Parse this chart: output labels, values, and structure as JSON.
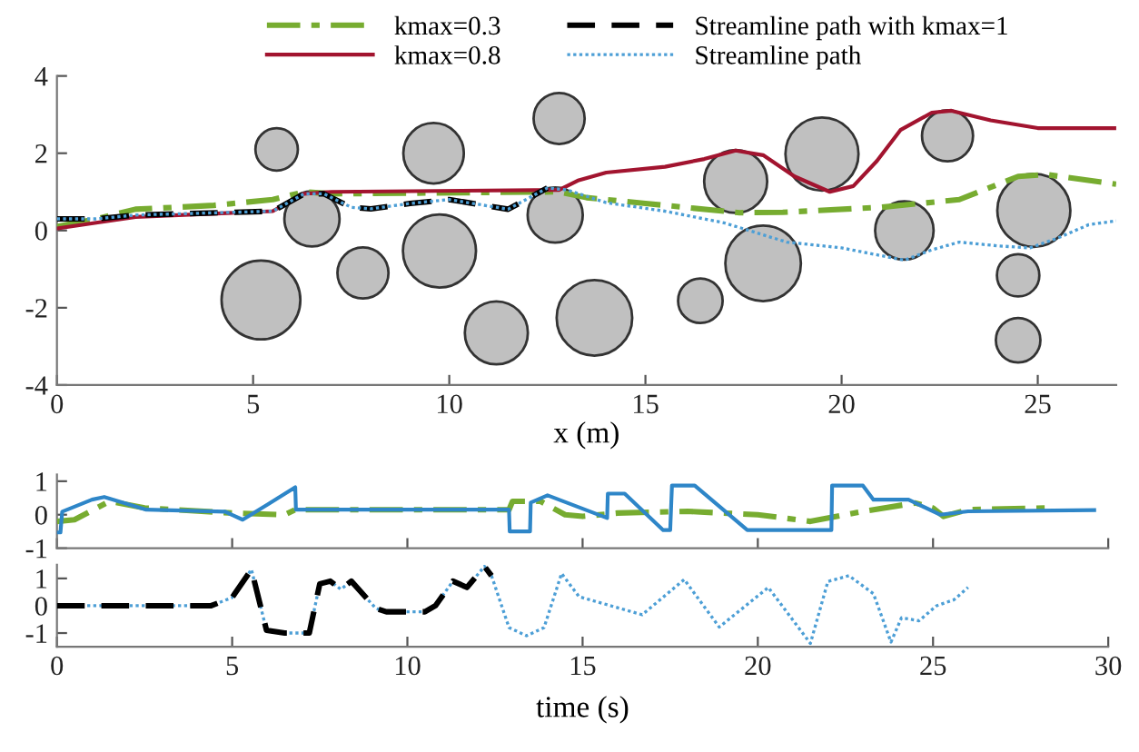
{
  "chart_data": [
    {
      "type": "line",
      "xlabel": "x (m)",
      "xlim": [
        0,
        27
      ],
      "ylim": [
        -4,
        4
      ],
      "xticks": [
        0,
        5,
        10,
        15,
        20,
        25
      ],
      "yticks": [
        4,
        2,
        0,
        -2,
        -4
      ],
      "legend": "top",
      "series": [
        {
          "type": "bubble",
          "color": "#c0c0c0",
          "x": [
            5.6,
            6.5,
            5.2,
            7.8,
            9.6,
            9.75,
            11.2,
            12.8,
            12.7,
            13.7,
            17.3,
            19.5,
            18.0,
            16.4,
            22.7,
            21.6,
            24.9,
            24.5,
            24.5
          ],
          "values": [
            2.1,
            0.3,
            -1.8,
            -1.1,
            2.0,
            -0.53,
            -2.65,
            2.9,
            0.4,
            -2.26,
            1.27,
            1.98,
            -0.85,
            -1.82,
            2.45,
            0.0,
            0.52,
            -1.16,
            -2.84
          ],
          "sizes": [
            0.29,
            0.49,
            1,
            0.42,
            0.59,
            0.86,
            0.64,
            0.42,
            0.49,
            0.92,
            0.64,
            0.86,
            0.92,
            0.32,
            0.42,
            0.55,
            0.86,
            0.29,
            0.32
          ]
        },
        {
          "type": "line",
          "name": "kmax=0.3",
          "color": "#77ac30",
          "line_style": "dashdot",
          "x": [
            0,
            1,
            2,
            4,
            5.5,
            6.3,
            7,
            12.8,
            13.5,
            15,
            17.4,
            18.5,
            21,
            23,
            24.5,
            25.2,
            27
          ],
          "values": [
            0.1,
            0.3,
            0.55,
            0.65,
            0.8,
            1.0,
            0.95,
            1.0,
            0.85,
            0.7,
            0.46,
            0.47,
            0.6,
            0.8,
            1.4,
            1.45,
            1.2
          ]
        },
        {
          "type": "line",
          "name": "kmax=0.8",
          "color": "#a2142f",
          "line_style": "solid",
          "x": [
            0,
            1,
            2,
            5.5,
            6.3,
            7,
            12.8,
            13.3,
            14,
            15.5,
            16.5,
            17.3,
            18,
            18.8,
            19.7,
            20.3,
            20.9,
            21.5,
            22.3,
            22.8,
            23.8,
            25,
            27
          ],
          "values": [
            0.05,
            0.2,
            0.35,
            0.5,
            0.95,
            1.0,
            1.05,
            1.3,
            1.5,
            1.65,
            1.85,
            2.07,
            1.95,
            1.4,
            1.0,
            1.15,
            1.8,
            2.6,
            3.05,
            3.1,
            2.85,
            2.65,
            2.65
          ]
        },
        {
          "type": "line",
          "name": "Streamline path with kmax=1",
          "color": "#000000",
          "line_style": "dashed",
          "x": [
            0,
            1,
            2,
            5.5,
            6.3,
            6.8,
            7.5,
            8,
            9,
            10,
            11.5,
            12.5
          ],
          "values": [
            0.3,
            0.3,
            0.4,
            0.5,
            0.95,
            0.95,
            0.6,
            0.56,
            0.7,
            0.8,
            0.55,
            1.1
          ]
        },
        {
          "type": "line",
          "name": "Streamline path",
          "color": "#4d9fd6",
          "line_style": "dotted",
          "x": [
            0,
            1,
            2,
            5.5,
            6.3,
            6.8,
            7.5,
            8,
            9,
            10,
            11.5,
            12.5,
            13,
            14,
            15.5,
            17,
            18.6,
            20,
            21,
            21.6,
            22.3,
            23,
            24,
            24.8,
            25.5,
            26.3,
            27
          ],
          "values": [
            0.3,
            0.3,
            0.4,
            0.5,
            0.95,
            0.95,
            0.6,
            0.56,
            0.7,
            0.8,
            0.55,
            1.1,
            1.05,
            0.72,
            0.5,
            0.2,
            -0.3,
            -0.45,
            -0.65,
            -0.77,
            -0.5,
            -0.3,
            -0.4,
            -0.45,
            -0.2,
            0.15,
            0.25
          ]
        }
      ]
    },
    {
      "type": "line",
      "xlim": [
        0,
        30
      ],
      "ylim": [
        -1,
        1.2
      ],
      "xticks": [
        0,
        5,
        10,
        15,
        20,
        25,
        30
      ],
      "yticks": [
        1,
        0,
        -1
      ],
      "tick_labels": "y",
      "series": [
        {
          "type": "line",
          "color": "#77ac30",
          "line_style": "dashdot",
          "x": [
            0,
            0.5,
            1.5,
            2.5,
            5,
            6.5,
            6.8,
            12.9,
            13,
            13.8,
            14.5,
            15,
            16,
            18,
            20,
            21.5,
            23,
            24.5,
            25,
            25.3,
            26,
            28.2
          ],
          "values": [
            -0.2,
            -0.15,
            0.4,
            0.2,
            0.05,
            0.0,
            0.15,
            0.15,
            0.4,
            0.4,
            0.0,
            -0.05,
            0.05,
            0.1,
            0.0,
            -0.2,
            0.1,
            0.35,
            0.2,
            -0.05,
            0.15,
            0.2
          ]
        },
        {
          "type": "line",
          "color": "#2e86c8",
          "line_style": "solid",
          "x": [
            0,
            0.1,
            0.15,
            1,
            1.35,
            2.55,
            4.8,
            5.3,
            6,
            6.8,
            6.82,
            12.9,
            12.92,
            13.5,
            13.52,
            14,
            15.7,
            15.72,
            16.2,
            17.3,
            17.5,
            17.55,
            18.2,
            19.7,
            22.1,
            22.12,
            23,
            23.3,
            24.3,
            25.2,
            26,
            29.6
          ],
          "values": [
            -0.53,
            -0.53,
            0.09,
            0.45,
            0.53,
            0.15,
            0.09,
            -0.15,
            0.3,
            0.82,
            0.15,
            0.15,
            -0.5,
            -0.5,
            0.36,
            0.58,
            -0.1,
            0.63,
            0.63,
            -0.46,
            -0.46,
            0.87,
            0.87,
            -0.46,
            -0.46,
            0.87,
            0.87,
            0.45,
            0.45,
            0.0,
            0.1,
            0.14
          ]
        }
      ]
    },
    {
      "type": "line",
      "xlabel": "time (s)",
      "xlim": [
        0,
        30
      ],
      "ylim": [
        -1.5,
        1.5
      ],
      "xticks": [
        0,
        5,
        10,
        15,
        20,
        25,
        30
      ],
      "yticks": [
        1,
        0,
        -1
      ],
      "series": [
        {
          "type": "line",
          "color": "#4d9fd6",
          "line_style": "dotted",
          "x": [
            0,
            4.4,
            5,
            5.55,
            5.98,
            6.5,
            7.2,
            7.5,
            7.8,
            8.1,
            8.4,
            9.1,
            9.4,
            10.5,
            10.8,
            11.3,
            11.7,
            12.2,
            12.4,
            12.9,
            13.4,
            13.9,
            14.4,
            14.9,
            16.7,
            17.9,
            18.9,
            20.3,
            21.5,
            22.0,
            22.6,
            23.3,
            23.8,
            24.1,
            24.6,
            25.1,
            25.6,
            26.0
          ],
          "values": [
            0,
            0,
            0.3,
            1.33,
            -0.9,
            -1.0,
            -1.0,
            0.8,
            0.9,
            0.6,
            0.9,
            -0.1,
            -0.22,
            -0.22,
            0.0,
            0.9,
            0.67,
            1.44,
            1.1,
            -0.8,
            -1.1,
            -0.8,
            1.18,
            0.33,
            -0.33,
            0.96,
            -0.78,
            0.67,
            -1.38,
            0.89,
            1.1,
            0.44,
            -1.33,
            -0.44,
            -0.55,
            0.0,
            0.22,
            0.67
          ]
        },
        {
          "type": "line",
          "color": "#000000",
          "line_style": "dashed",
          "x": [
            0,
            4.4,
            5,
            5.55,
            5.98,
            6.5,
            7.2,
            7.5,
            7.8,
            8.1,
            8.4,
            9.1,
            9.4,
            10.5,
            10.8,
            11.3,
            11.7,
            12.2,
            12.4
          ],
          "values": [
            0,
            0,
            0.3,
            1.33,
            -0.9,
            -1.0,
            -1.0,
            0.8,
            0.9,
            0.6,
            0.9,
            -0.1,
            -0.22,
            -0.22,
            0.0,
            0.9,
            0.67,
            1.44,
            1.1
          ]
        }
      ]
    }
  ]
}
